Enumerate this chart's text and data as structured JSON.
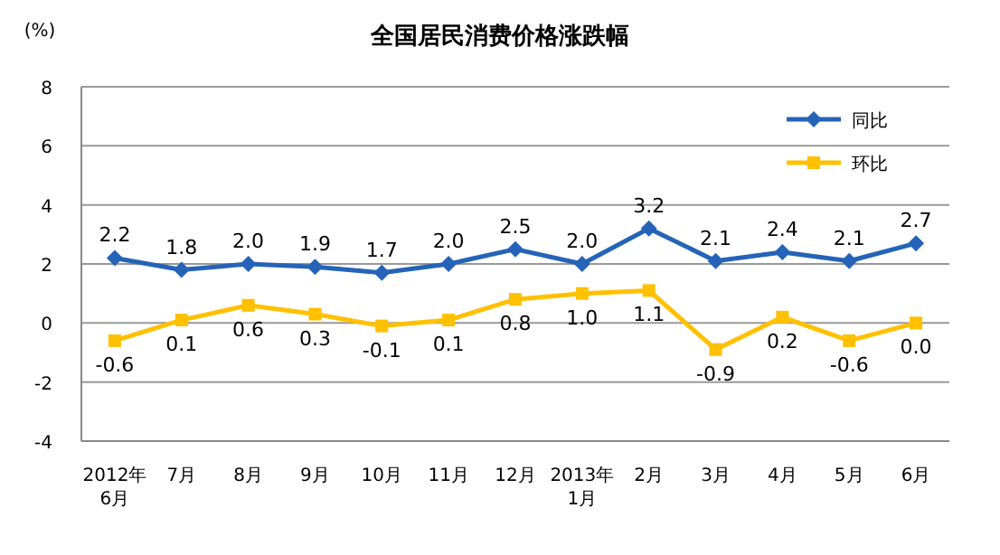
{
  "chart_data": {
    "type": "line",
    "title": "全国居民消费价格涨跌幅",
    "ylabel": "(%)",
    "categories": [
      "2012年\n6月",
      "7月",
      "8月",
      "9月",
      "10月",
      "11月",
      "12月",
      "2013年\n1月",
      "2月",
      "3月",
      "4月",
      "5月",
      "6月"
    ],
    "series": [
      {
        "name": "同比",
        "color": "#2563b8",
        "marker": "diamond",
        "values": [
          2.2,
          1.8,
          2.0,
          1.9,
          1.7,
          2.0,
          2.5,
          2.0,
          3.2,
          2.1,
          2.4,
          2.1,
          2.7
        ],
        "value_labels": [
          "2.2",
          "1.8",
          "2.0",
          "1.9",
          "1.7",
          "2.0",
          "2.5",
          "2.0",
          "3.2",
          "2.1",
          "2.4",
          "2.1",
          "2.7"
        ]
      },
      {
        "name": "环比",
        "color": "#ffc000",
        "marker": "square",
        "values": [
          -0.6,
          0.1,
          0.6,
          0.3,
          -0.1,
          0.1,
          0.8,
          1.0,
          1.1,
          -0.9,
          0.2,
          -0.6,
          0.0
        ],
        "value_labels": [
          "-0.6",
          "0.1",
          "0.6",
          "0.3",
          "-0.1",
          "0.1",
          "0.8",
          "1.0",
          "1.1",
          "-0.9",
          "0.2",
          "-0.6",
          "0.0"
        ]
      }
    ],
    "ylim": [
      -4,
      8
    ],
    "yticks": [
      -4,
      -2,
      0,
      2,
      4,
      6,
      8
    ],
    "grid": "y",
    "legend": "top right"
  }
}
